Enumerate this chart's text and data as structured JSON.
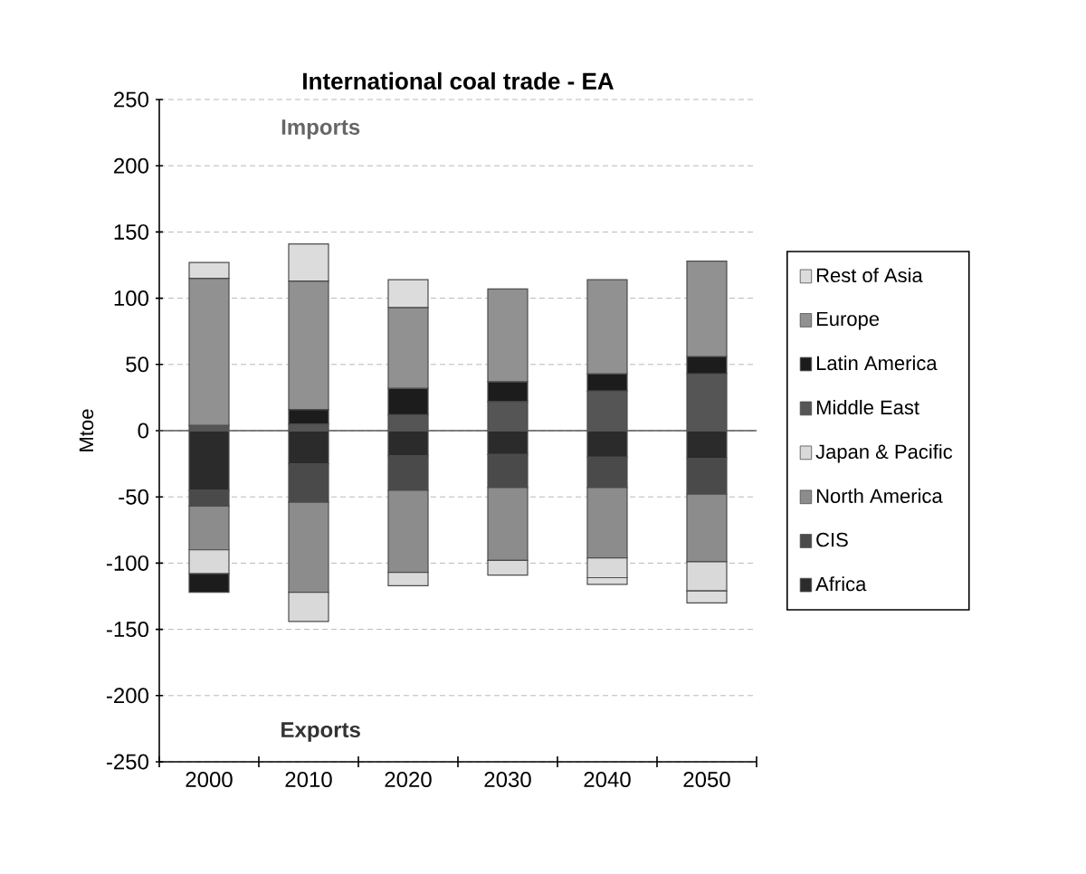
{
  "chart_data": {
    "type": "bar",
    "title": "International coal trade - EA",
    "ylabel": "Mtoe",
    "categories": [
      "2000",
      "2010",
      "2020",
      "2030",
      "2040",
      "2050"
    ],
    "stacked": true,
    "series": [
      {
        "name": "Africa",
        "color": "#2b2b2b",
        "values": [
          -45,
          -25,
          -19,
          -18,
          -20,
          -21
        ]
      },
      {
        "name": "CIS",
        "color": "#4a4a4a",
        "values": [
          -12,
          -29,
          -26,
          -25,
          -23,
          -27
        ]
      },
      {
        "name": "North America",
        "color": "#8c8c8c",
        "values": [
          -33,
          -68,
          -62,
          -55,
          -53,
          -51
        ]
      },
      {
        "name": "Japan & Pacific",
        "color": "#d9d9d9",
        "values": [
          -18,
          -22,
          -10,
          -11,
          -15,
          -22
        ]
      },
      {
        "name": "Middle East",
        "color": "#555555",
        "values": [
          4,
          5,
          12,
          22,
          30,
          43
        ]
      },
      {
        "name": "Latin America",
        "color": "#1c1c1c",
        "values": [
          -14,
          11,
          20,
          15,
          13,
          13
        ]
      },
      {
        "name": "Europe",
        "color": "#919191",
        "values": [
          111,
          97,
          61,
          70,
          71,
          72
        ]
      },
      {
        "name": "Rest of Asia",
        "color": "#dcdcdc",
        "values": [
          12,
          28,
          21,
          null,
          -5,
          -9
        ]
      }
    ],
    "ylim": [
      -250,
      250
    ],
    "yticks": [
      -250,
      -200,
      -150,
      -100,
      -50,
      0,
      50,
      100,
      150,
      200,
      250
    ],
    "grid": "y",
    "legend": "right",
    "annotations": [
      "Imports",
      "Exports"
    ]
  }
}
